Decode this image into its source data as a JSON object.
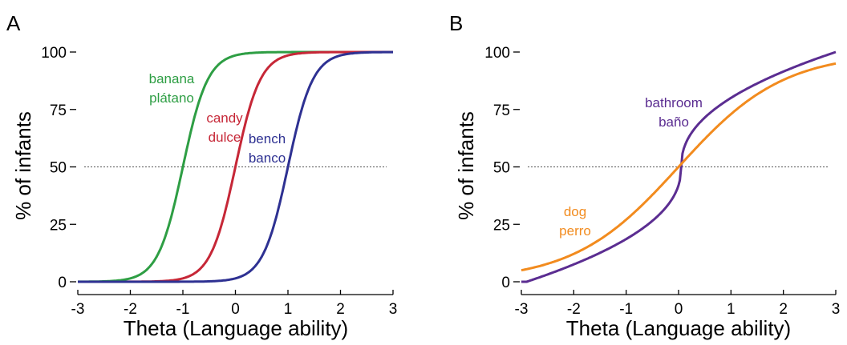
{
  "chart_data": [
    {
      "type": "line",
      "panel_label": "A",
      "xlabel": "Theta (Language ability)",
      "ylabel": "% of infants",
      "xlim": [
        -3,
        3
      ],
      "ylim": [
        0,
        100
      ],
      "xticks": [
        -3,
        -2,
        -1,
        0,
        1,
        2,
        3
      ],
      "xtick_labels": [
        "-3",
        "-2",
        "-1",
        "0",
        "1",
        "2",
        "3"
      ],
      "yticks": [
        0,
        25,
        50,
        75,
        100
      ],
      "ytick_labels": [
        "0",
        "25",
        "50",
        "75",
        "100"
      ],
      "reference_line": {
        "y": 50,
        "style": "dotted"
      },
      "grid": false,
      "legend": "none (curves labeled directly)",
      "series": [
        {
          "label_lines": [
            "banana",
            "plátano"
          ],
          "color": "#2e9e44",
          "midpoint": -1.0,
          "slope": 4.2,
          "x": [
            -3,
            -2.5,
            -2,
            -1.5,
            -1,
            -0.5,
            0,
            0.5,
            1,
            1.5,
            2,
            2.5,
            3
          ],
          "y": [
            0,
            0.2,
            1.5,
            11,
            50,
            89,
            98.5,
            99.8,
            100,
            100,
            100,
            100,
            100
          ]
        },
        {
          "label_lines": [
            "candy",
            "dulce"
          ],
          "color": "#c62737",
          "midpoint": 0.0,
          "slope": 4.2,
          "x": [
            -3,
            -2.5,
            -2,
            -1.5,
            -1,
            -0.5,
            0,
            0.5,
            1,
            1.5,
            2,
            2.5,
            3
          ],
          "y": [
            0,
            0,
            0,
            0.2,
            1.5,
            11,
            50,
            89,
            98.5,
            99.8,
            100,
            100,
            100
          ]
        },
        {
          "label_lines": [
            "bench",
            "banco"
          ],
          "color": "#2e3192",
          "midpoint": 1.0,
          "slope": 4.2,
          "x": [
            -3,
            -2.5,
            -2,
            -1.5,
            -1,
            -0.5,
            0,
            0.5,
            1,
            1.5,
            2,
            2.5,
            3
          ],
          "y": [
            0,
            0,
            0,
            0,
            0,
            0.2,
            1.5,
            11,
            50,
            89,
            98.5,
            99.8,
            100
          ]
        }
      ]
    },
    {
      "type": "line",
      "panel_label": "B",
      "xlabel": "Theta (Language ability)",
      "ylabel": "% of infants",
      "xlim": [
        -3,
        3
      ],
      "ylim": [
        0,
        100
      ],
      "xticks": [
        -3,
        -2,
        -1,
        0,
        1,
        2,
        3
      ],
      "xtick_labels": [
        "-3",
        "-2",
        "-1",
        "0",
        "1",
        "2",
        "3"
      ],
      "yticks": [
        0,
        25,
        50,
        75,
        100
      ],
      "ytick_labels": [
        "0",
        "25",
        "50",
        "75",
        "100"
      ],
      "reference_line": {
        "y": 50,
        "style": "dotted"
      },
      "grid": false,
      "legend": "none (curves labeled directly)",
      "series": [
        {
          "label_lines": [
            "bathroom",
            "baño"
          ],
          "color": "#5b2d91",
          "shape": "steep center, gradual tails",
          "midpoint": 0.05,
          "x": [
            -3,
            -2,
            -1,
            -0.5,
            0,
            0.05,
            0.1,
            0.5,
            1,
            2,
            3
          ],
          "y": [
            0,
            3,
            11,
            20,
            38,
            50,
            62,
            80,
            89,
            97,
            100
          ]
        },
        {
          "label_lines": [
            "dog",
            "perro"
          ],
          "color": "#f28b1e",
          "midpoint": 0.0,
          "slope": 1.0,
          "x": [
            -3,
            -2,
            -1,
            0,
            1,
            2,
            3
          ],
          "y": [
            5,
            12,
            27,
            50,
            73,
            88,
            95
          ]
        }
      ]
    }
  ]
}
